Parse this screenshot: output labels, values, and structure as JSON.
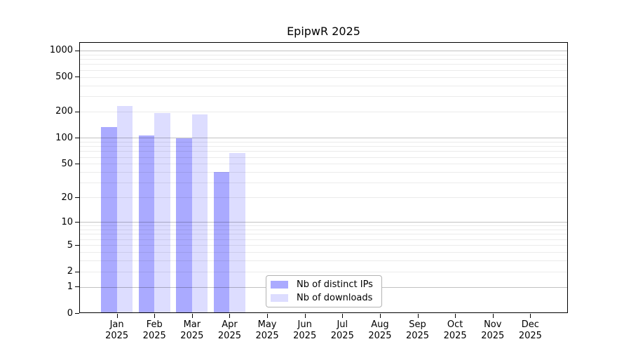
{
  "chart_data": {
    "type": "bar",
    "title": "EpipwR 2025",
    "categories": [
      "Jan",
      "Feb",
      "Mar",
      "Apr",
      "May",
      "Jun",
      "Jul",
      "Aug",
      "Sep",
      "Oct",
      "Nov",
      "Dec"
    ],
    "category_year": "2025",
    "series": [
      {
        "name": "Nb of distinct IPs",
        "color": "#aaaaff",
        "values": [
          133,
          106,
          98,
          40,
          0,
          0,
          0,
          0,
          0,
          0,
          0,
          0
        ]
      },
      {
        "name": "Nb of downloads",
        "color": "#ddddff",
        "values": [
          230,
          193,
          185,
          67,
          0,
          0,
          0,
          0,
          0,
          0,
          0,
          0
        ]
      }
    ],
    "xlabel": "",
    "ylabel": "",
    "y_scale": "log1p",
    "y_ticks": [
      1000,
      500,
      200,
      100,
      50,
      20,
      10,
      5,
      2,
      1,
      0
    ],
    "ylim": [
      0,
      1248
    ],
    "grid": true,
    "grid_major_values": [
      1,
      10,
      100,
      1000
    ],
    "grid_minor_values": [
      2,
      3,
      4,
      5,
      6,
      7,
      8,
      9,
      20,
      30,
      40,
      50,
      60,
      70,
      80,
      90,
      200,
      300,
      400,
      500,
      600,
      700,
      800,
      900
    ],
    "legend_position": "inside-bottom-center"
  }
}
